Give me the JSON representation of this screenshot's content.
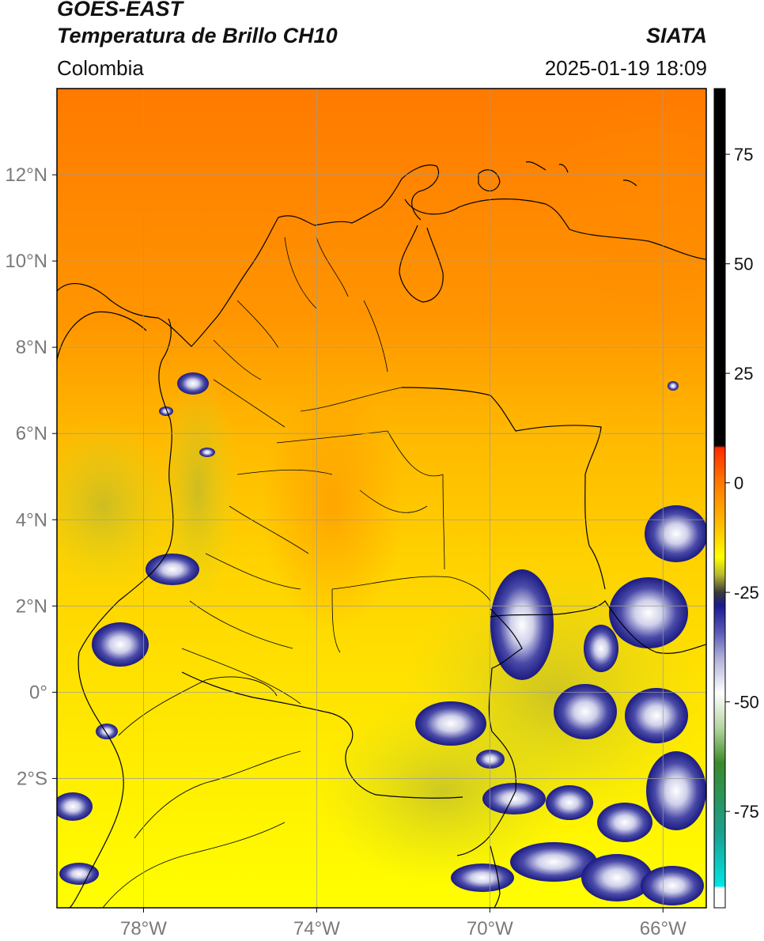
{
  "header": {
    "satellite": "GOES-EAST",
    "product": "Temperatura de Brillo CH10",
    "organization": "SIATA",
    "region": "Colombia",
    "datetime": "2025-01-19 18:09"
  },
  "map": {
    "lon_range": [
      -80,
      -65
    ],
    "lat_range": [
      -5,
      14
    ],
    "lon_ticks": [
      {
        "value": -78,
        "label": "78°W"
      },
      {
        "value": -74,
        "label": "74°W"
      },
      {
        "value": -70,
        "label": "70°W"
      },
      {
        "value": -66,
        "label": "66°W"
      }
    ],
    "lat_ticks": [
      {
        "value": 12,
        "label": "12°N"
      },
      {
        "value": 10,
        "label": "10°N"
      },
      {
        "value": 8,
        "label": "8°N"
      },
      {
        "value": 6,
        "label": "6°N"
      },
      {
        "value": 4,
        "label": "4°N"
      },
      {
        "value": 2,
        "label": "2°N"
      },
      {
        "value": 0,
        "label": "0°"
      },
      {
        "value": -2,
        "label": "2°S"
      }
    ],
    "gridlines": true,
    "grid_color": "#999999",
    "background_color": "#ffb300"
  },
  "colorbar": {
    "range": [
      -97,
      90
    ],
    "ticks": [
      {
        "value": 75,
        "label": "75"
      },
      {
        "value": 50,
        "label": "50"
      },
      {
        "value": 25,
        "label": "25"
      },
      {
        "value": 0,
        "label": "0"
      },
      {
        "value": -25,
        "label": "-25"
      },
      {
        "value": -50,
        "label": "-50"
      },
      {
        "value": -75,
        "label": "-75"
      }
    ],
    "stops": [
      {
        "value": 90,
        "color": "#000000"
      },
      {
        "value": 8.5,
        "color": "#000000"
      },
      {
        "value": 8,
        "color": "#ff2a00"
      },
      {
        "value": 0,
        "color": "#ff7a00"
      },
      {
        "value": -10,
        "color": "#ffc000"
      },
      {
        "value": -17,
        "color": "#ffff00"
      },
      {
        "value": -21,
        "color": "#b8b830"
      },
      {
        "value": -25,
        "color": "#3a3a3a"
      },
      {
        "value": -28,
        "color": "#1a1a90"
      },
      {
        "value": -34,
        "color": "#5858b8"
      },
      {
        "value": -40,
        "color": "#b0b0d8"
      },
      {
        "value": -48,
        "color": "#ffffff"
      },
      {
        "value": -56,
        "color": "#b4d4a0"
      },
      {
        "value": -64,
        "color": "#3a8a2a"
      },
      {
        "value": -80,
        "color": "#1aa090"
      },
      {
        "value": -92,
        "color": "#00e5e5"
      },
      {
        "value": -92.5,
        "color": "#ffffff"
      },
      {
        "value": -97,
        "color": "#ffffff"
      }
    ]
  }
}
